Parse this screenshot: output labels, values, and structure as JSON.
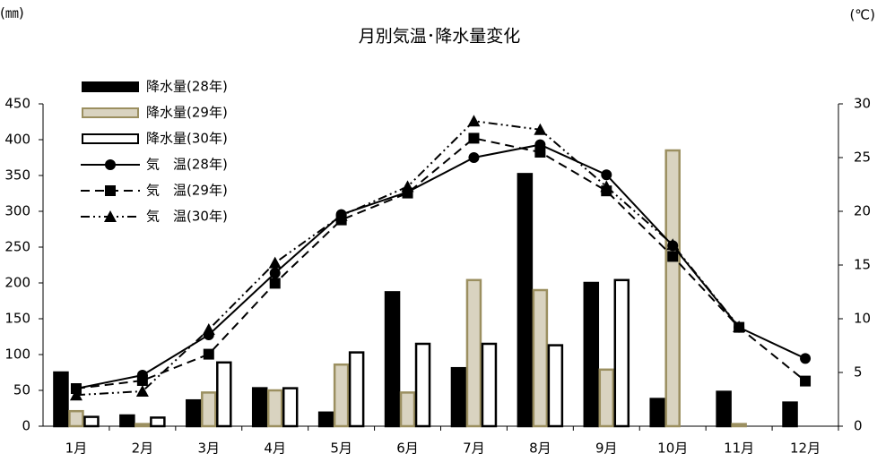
{
  "chart_data": {
    "type": "bar",
    "title": "月別気温･降水量変化",
    "y_unit": "(㎜)",
    "y2_unit": "(℃)",
    "categories": [
      "1月",
      "2月",
      "3月",
      "4月",
      "5月",
      "6月",
      "7月",
      "8月",
      "9月",
      "10月",
      "11月",
      "12月"
    ],
    "ylim": [
      0,
      450
    ],
    "yticks": [
      0,
      50,
      100,
      150,
      200,
      250,
      300,
      350,
      400,
      450
    ],
    "y2lim": [
      0,
      30
    ],
    "y2ticks": [
      0,
      5,
      10,
      15,
      20,
      25,
      30
    ],
    "series": [
      {
        "name": "降水量(28年)",
        "kind": "bar",
        "color": "#000000",
        "stroke": "#000000",
        "values": [
          75,
          15,
          36,
          53,
          19,
          187,
          81,
          352,
          200,
          38,
          48,
          33
        ]
      },
      {
        "name": "降水量(29年)",
        "kind": "bar",
        "color": "#d9d3c0",
        "stroke": "#9b8f60",
        "values": [
          21,
          3,
          47,
          50,
          86,
          47,
          204,
          190,
          79,
          385,
          3,
          null
        ]
      },
      {
        "name": "降水量(30年)",
        "kind": "bar",
        "color": "#ffffff",
        "stroke": "#000000",
        "values": [
          13,
          12,
          89,
          53,
          103,
          115,
          115,
          113,
          204,
          null,
          null,
          null
        ]
      },
      {
        "name": "気　温(28年)",
        "kind": "line",
        "axis": "y2",
        "color": "#000000",
        "marker": "circle",
        "dash": "solid",
        "values": [
          3.5,
          4.75,
          8.5,
          14.25,
          19.7,
          21.8,
          25,
          26.2,
          23.4,
          16.8,
          9.2,
          6.3
        ]
      },
      {
        "name": "気　温(29年)",
        "kind": "line",
        "axis": "y2",
        "color": "#000000",
        "marker": "square",
        "dash": "dashed",
        "values": [
          3.5,
          4.25,
          6.7,
          13.3,
          19.2,
          21.7,
          26.8,
          25.5,
          21.9,
          15.8,
          9.2,
          4.2
        ]
      },
      {
        "name": "気　温(30年)",
        "kind": "line",
        "axis": "y2",
        "color": "#000000",
        "marker": "triangle",
        "dash": "dashdotdot",
        "values": [
          2.9,
          3.25,
          9,
          15.2,
          19.6,
          22.3,
          28.4,
          27.6,
          22.3,
          16.9,
          9.25,
          null
        ]
      }
    ]
  }
}
